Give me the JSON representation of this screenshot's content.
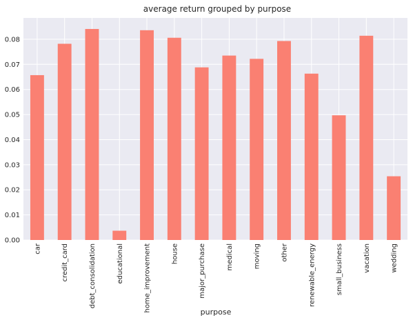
{
  "chart_data": {
    "type": "bar",
    "title": "average return grouped by purpose",
    "xlabel": "purpose",
    "ylabel": "",
    "categories": [
      "car",
      "credit_card",
      "debt_consolidation",
      "educational",
      "home_improvement",
      "house",
      "major_purchase",
      "medical",
      "moving",
      "other",
      "renewable_energy",
      "small_business",
      "vacation",
      "wedding"
    ],
    "values": [
      0.0657,
      0.0782,
      0.0841,
      0.0037,
      0.0836,
      0.0806,
      0.0688,
      0.0735,
      0.0722,
      0.0793,
      0.0663,
      0.0497,
      0.0814,
      0.0254
    ],
    "ylim": [
      0,
      0.0885
    ],
    "yticks": [
      "0.00",
      "0.01",
      "0.02",
      "0.03",
      "0.04",
      "0.05",
      "0.06",
      "0.07",
      "0.08"
    ],
    "grid": true,
    "bar_color": "#fa8072",
    "background_color": "#eaeaf2",
    "grid_color": "#ffffff"
  }
}
